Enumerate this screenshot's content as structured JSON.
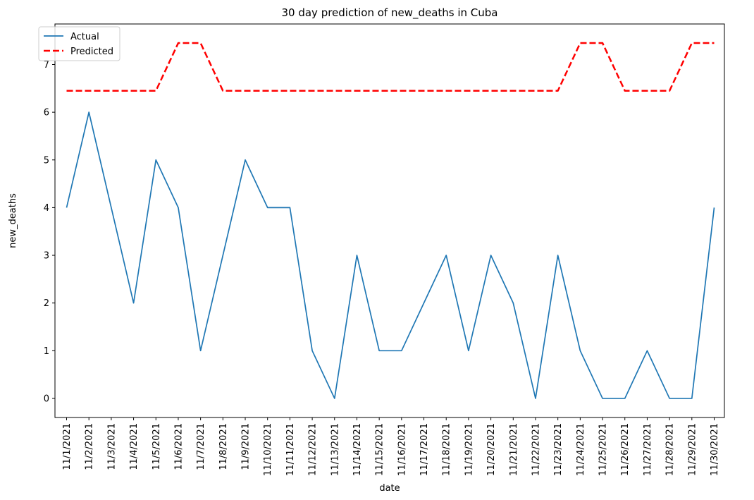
{
  "chart_data": {
    "type": "line",
    "title": "30 day prediction of new_deaths in Cuba",
    "xlabel": "date",
    "ylabel": "new_deaths",
    "categories": [
      "11/1/2021",
      "11/2/2021",
      "11/3/2021",
      "11/4/2021",
      "11/5/2021",
      "11/6/2021",
      "11/7/2021",
      "11/8/2021",
      "11/9/2021",
      "11/10/2021",
      "11/11/2021",
      "11/12/2021",
      "11/13/2021",
      "11/14/2021",
      "11/15/2021",
      "11/16/2021",
      "11/17/2021",
      "11/18/2021",
      "11/19/2021",
      "11/20/2021",
      "11/21/2021",
      "11/22/2021",
      "11/23/2021",
      "11/24/2021",
      "11/25/2021",
      "11/26/2021",
      "11/27/2021",
      "11/28/2021",
      "11/29/2021",
      "11/30/2021"
    ],
    "ylim": [
      -0.4,
      7.85
    ],
    "yticks": [
      0,
      1,
      2,
      3,
      4,
      5,
      6,
      7
    ],
    "grid": false,
    "legend_position": "top-left",
    "series": [
      {
        "name": "Actual",
        "color": "#1f77b4",
        "style": "solid",
        "values": [
          4,
          6,
          4,
          2,
          5,
          4,
          1,
          3,
          5,
          4,
          4,
          1,
          0,
          3,
          1,
          1,
          2,
          3,
          1,
          3,
          2,
          0,
          3,
          1,
          0,
          0,
          1,
          0,
          0,
          4
        ]
      },
      {
        "name": "Predicted",
        "color": "#ff0000",
        "style": "dashed",
        "values": [
          6.45,
          6.45,
          6.45,
          6.45,
          6.45,
          7.45,
          7.45,
          6.45,
          6.45,
          6.45,
          6.45,
          6.45,
          6.45,
          6.45,
          6.45,
          6.45,
          6.45,
          6.45,
          6.45,
          6.45,
          6.45,
          6.45,
          6.45,
          7.45,
          7.45,
          6.45,
          6.45,
          6.45,
          7.45,
          7.45
        ]
      }
    ]
  }
}
